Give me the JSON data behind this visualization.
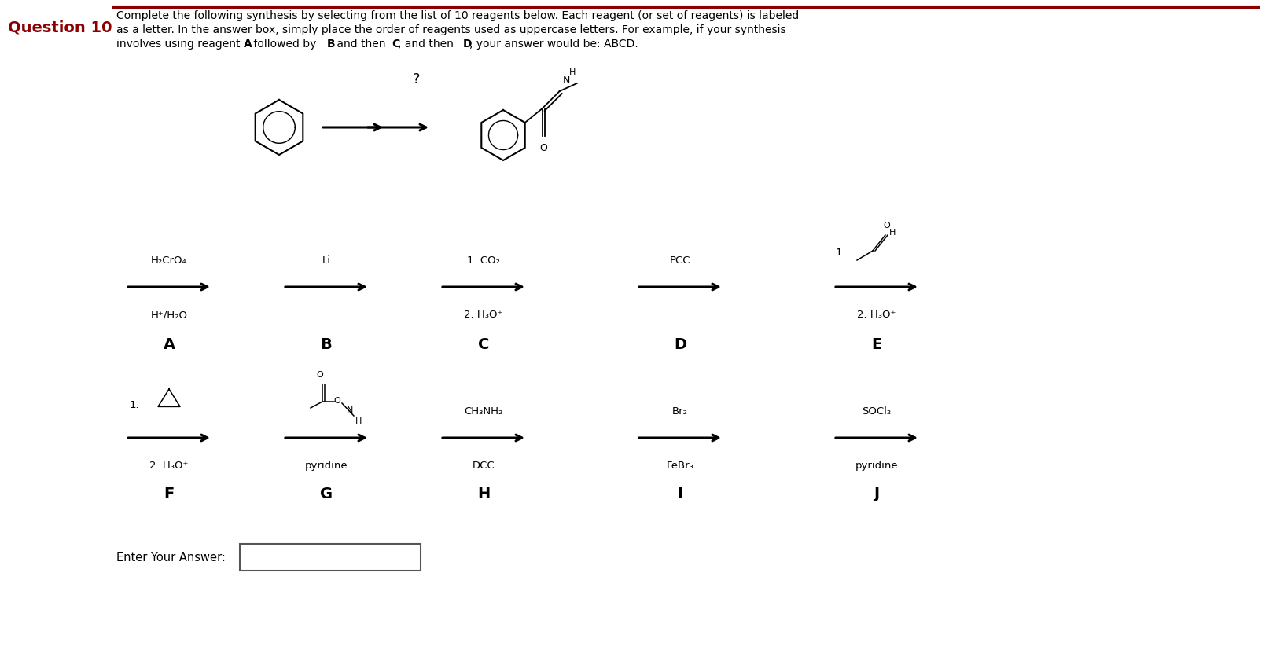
{
  "title": "Question 10",
  "instruction_line1": "Complete the following synthesis by selecting from the list of 10 reagents below. Each reagent (or set of reagents) is labeled",
  "instruction_line2": "as a letter. In the answer box, simply place the order of reagents used as uppercase letters. For example, if your synthesis",
  "instruction_line3_parts": [
    {
      "text": "involves using reagent ",
      "bold": false
    },
    {
      "text": "A",
      "bold": true
    },
    {
      "text": " followed by ",
      "bold": false
    },
    {
      "text": "B",
      "bold": true
    },
    {
      "text": " and then ",
      "bold": false
    },
    {
      "text": "C",
      "bold": true
    },
    {
      "text": ", and then ",
      "bold": false
    },
    {
      "text": "D",
      "bold": true
    },
    {
      "text": ", your answer would be: ABCD.",
      "bold": false
    }
  ],
  "bg_color": "#ffffff",
  "text_color": "#000000",
  "title_color": "#8B0000",
  "separator_color": "#8B0000",
  "enter_answer_label": "Enter Your Answer:"
}
